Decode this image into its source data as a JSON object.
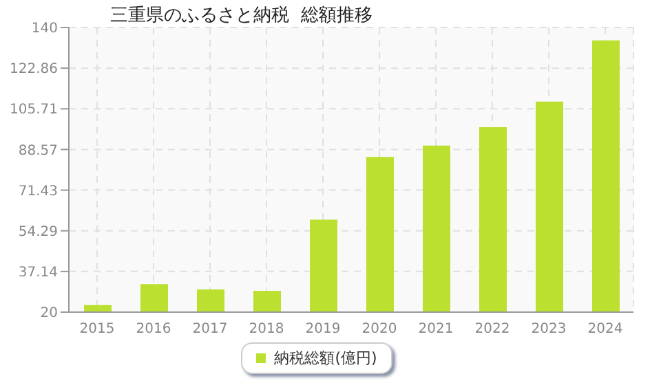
{
  "chart_data": {
    "type": "bar",
    "title": "三重県のふるさと納税  総額推移",
    "categories": [
      "2015",
      "2016",
      "2017",
      "2018",
      "2019",
      "2020",
      "2021",
      "2022",
      "2023",
      "2024"
    ],
    "series": [
      {
        "name": "納税総額(億円)",
        "color": "#bce030",
        "values": [
          23,
          31.8,
          29.6,
          29,
          59,
          85.4,
          90.2,
          98,
          108.8,
          134.6
        ]
      }
    ],
    "ylim": [
      20,
      140
    ],
    "yticks": [
      20,
      37.14,
      54.29,
      71.43,
      88.57,
      105.71,
      122.86,
      140
    ],
    "grid": true,
    "legend": "bottom"
  }
}
